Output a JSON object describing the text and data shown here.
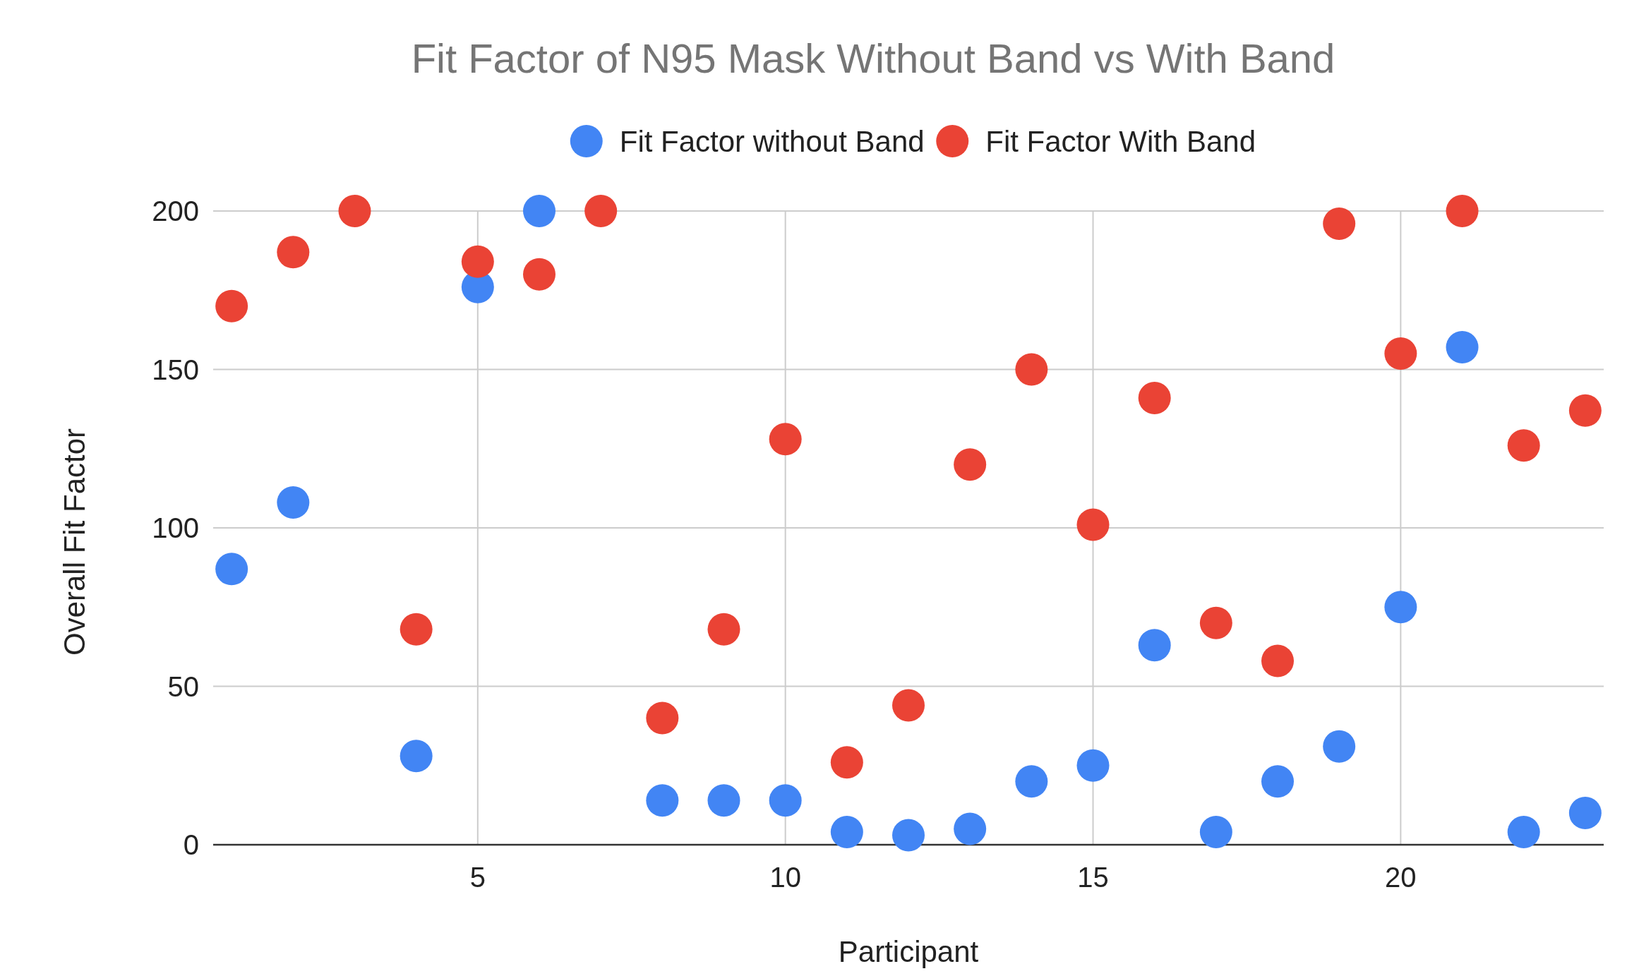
{
  "chart_data": {
    "type": "scatter",
    "title": "Fit Factor of N95 Mask Without Band vs With Band",
    "xlabel": "Participant",
    "ylabel": "Overall Fit Factor",
    "x": [
      1,
      2,
      3,
      4,
      5,
      6,
      7,
      8,
      9,
      10,
      11,
      12,
      13,
      14,
      15,
      16,
      17,
      18,
      19,
      20,
      21,
      22,
      23
    ],
    "series": [
      {
        "name": "Fit Factor without Band",
        "color": "#4285f4",
        "values": [
          87,
          108,
          null,
          28,
          176,
          200,
          null,
          14,
          14,
          14,
          4,
          3,
          5,
          20,
          25,
          63,
          4,
          20,
          31,
          75,
          157,
          4,
          10
        ]
      },
      {
        "name": "Fit Factor With Band",
        "color": "#ea4335",
        "values": [
          170,
          187,
          200,
          68,
          184,
          180,
          200,
          40,
          68,
          128,
          26,
          44,
          120,
          150,
          101,
          141,
          70,
          58,
          196,
          155,
          200,
          126,
          137
        ]
      }
    ],
    "xlim": [
      0.7,
      23.3
    ],
    "xticks": [
      5,
      10,
      15,
      20
    ],
    "ylim": [
      0,
      200
    ],
    "yticks": [
      0,
      50,
      100,
      150,
      200
    ],
    "grid": true,
    "legend": "top",
    "marker": "circle"
  }
}
